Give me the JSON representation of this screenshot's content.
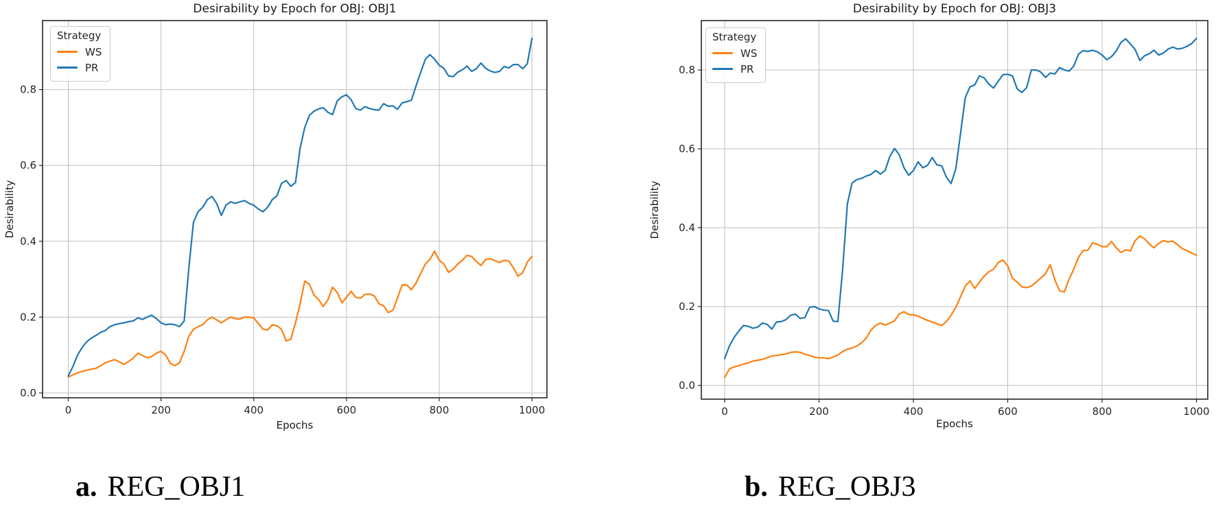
{
  "page": {
    "background": "#ffffff"
  },
  "style": {
    "ws_color": "#ff7f0e",
    "pr_color": "#1f77b4",
    "grid_color": "#bdbdbd",
    "spine_color": "#262626",
    "text_color": "#262626"
  },
  "figure": {
    "captions": [
      {
        "tag": "a.",
        "text": "REG_OBJ1"
      },
      {
        "tag": "b.",
        "text": "REG_OBJ3"
      }
    ]
  },
  "charts": [
    {
      "title": "Desirability by Epoch for OBJ: OBJ1",
      "xlabel": "Epochs",
      "ylabel": "Desirability",
      "legend": {
        "title": "Strategy",
        "items": [
          {
            "label": "WS",
            "color": "#ff7f0e"
          },
          {
            "label": "PR",
            "color": "#1f77b4"
          }
        ]
      },
      "x_ticks": {
        "values": [
          0,
          200,
          400,
          600,
          800,
          1000
        ],
        "labels": [
          "0",
          "200",
          "400",
          "600",
          "800",
          "1000"
        ]
      },
      "y_ticks": {
        "values": [
          0.0,
          0.2,
          0.4,
          0.6,
          0.8
        ],
        "labels": [
          "0.0",
          "0.2",
          "0.4",
          "0.6",
          "0.8"
        ]
      }
    },
    {
      "title": "Desirability by Epoch for OBJ: OBJ3",
      "xlabel": "Epochs",
      "ylabel": "Desirability",
      "legend": {
        "title": "Strategy",
        "items": [
          {
            "label": "WS",
            "color": "#ff7f0e"
          },
          {
            "label": "PR",
            "color": "#1f77b4"
          }
        ]
      },
      "x_ticks": {
        "values": [
          0,
          200,
          400,
          600,
          800,
          1000
        ],
        "labels": [
          "0",
          "200",
          "400",
          "600",
          "800",
          "1000"
        ]
      },
      "y_ticks": {
        "values": [
          0.0,
          0.2,
          0.4,
          0.6,
          0.8
        ],
        "labels": [
          "0.0",
          "0.2",
          "0.4",
          "0.6",
          "0.8"
        ]
      }
    }
  ],
  "chart_data": [
    {
      "type": "line",
      "title": "Desirability by Epoch for OBJ: OBJ1",
      "xlabel": "Epochs",
      "ylabel": "Desirability",
      "legend_title": "Strategy",
      "legend_position": "upper left",
      "grid": true,
      "xlim": [
        -55,
        1032
      ],
      "ylim": [
        -0.015,
        0.981
      ],
      "x": [
        0,
        10,
        20,
        30,
        40,
        50,
        60,
        70,
        80,
        90,
        100,
        110,
        120,
        130,
        140,
        150,
        160,
        170,
        180,
        190,
        200,
        210,
        220,
        230,
        240,
        250,
        260,
        270,
        280,
        290,
        300,
        310,
        320,
        330,
        340,
        350,
        360,
        370,
        380,
        390,
        400,
        410,
        420,
        430,
        440,
        450,
        460,
        470,
        480,
        490,
        500,
        510,
        520,
        530,
        540,
        550,
        560,
        570,
        580,
        590,
        600,
        610,
        620,
        630,
        640,
        650,
        660,
        670,
        680,
        690,
        700,
        710,
        720,
        730,
        740,
        750,
        760,
        770,
        780,
        790,
        800,
        810,
        820,
        830,
        840,
        850,
        860,
        870,
        880,
        890,
        900,
        910,
        920,
        930,
        940,
        950,
        960,
        970,
        980,
        990,
        1000
      ],
      "series": [
        {
          "name": "WS",
          "color": "#ff7f0e",
          "values": [
            0.042,
            0.048,
            0.053,
            0.057,
            0.06,
            0.063,
            0.065,
            0.072,
            0.08,
            0.084,
            0.088,
            0.082,
            0.075,
            0.083,
            0.092,
            0.105,
            0.099,
            0.093,
            0.096,
            0.105,
            0.11,
            0.1,
            0.078,
            0.072,
            0.08,
            0.11,
            0.15,
            0.168,
            0.175,
            0.18,
            0.193,
            0.2,
            0.193,
            0.185,
            0.193,
            0.2,
            0.196,
            0.195,
            0.2,
            0.2,
            0.198,
            0.183,
            0.168,
            0.166,
            0.18,
            0.177,
            0.168,
            0.137,
            0.142,
            0.185,
            0.235,
            0.295,
            0.287,
            0.258,
            0.246,
            0.228,
            0.246,
            0.279,
            0.265,
            0.238,
            0.252,
            0.268,
            0.252,
            0.25,
            0.26,
            0.261,
            0.256,
            0.235,
            0.23,
            0.212,
            0.218,
            0.25,
            0.285,
            0.285,
            0.272,
            0.29,
            0.315,
            0.34,
            0.352,
            0.374,
            0.35,
            0.34,
            0.318,
            0.326,
            0.34,
            0.35,
            0.363,
            0.36,
            0.347,
            0.336,
            0.352,
            0.354,
            0.349,
            0.344,
            0.35,
            0.348,
            0.33,
            0.308,
            0.317,
            0.345,
            0.36
          ]
        },
        {
          "name": "PR",
          "color": "#1f77b4",
          "values": [
            0.045,
            0.07,
            0.1,
            0.12,
            0.135,
            0.145,
            0.152,
            0.16,
            0.165,
            0.175,
            0.18,
            0.183,
            0.185,
            0.188,
            0.19,
            0.198,
            0.194,
            0.2,
            0.205,
            0.196,
            0.185,
            0.18,
            0.182,
            0.18,
            0.175,
            0.19,
            0.33,
            0.45,
            0.478,
            0.49,
            0.51,
            0.518,
            0.5,
            0.468,
            0.495,
            0.504,
            0.5,
            0.504,
            0.507,
            0.5,
            0.495,
            0.485,
            0.478,
            0.49,
            0.51,
            0.52,
            0.553,
            0.56,
            0.545,
            0.555,
            0.645,
            0.7,
            0.732,
            0.743,
            0.749,
            0.752,
            0.74,
            0.734,
            0.77,
            0.781,
            0.786,
            0.773,
            0.75,
            0.746,
            0.755,
            0.75,
            0.747,
            0.746,
            0.763,
            0.756,
            0.757,
            0.748,
            0.765,
            0.768,
            0.772,
            0.81,
            0.845,
            0.88,
            0.892,
            0.88,
            0.864,
            0.856,
            0.836,
            0.834,
            0.846,
            0.852,
            0.862,
            0.848,
            0.855,
            0.87,
            0.856,
            0.849,
            0.845,
            0.848,
            0.861,
            0.857,
            0.866,
            0.866,
            0.855,
            0.868,
            0.935
          ]
        }
      ]
    },
    {
      "type": "line",
      "title": "Desirability by Epoch for OBJ: OBJ3",
      "xlabel": "Epochs",
      "ylabel": "Desirability",
      "legend_title": "Strategy",
      "legend_position": "upper left",
      "grid": true,
      "xlim": [
        -49,
        1024
      ],
      "ylim": [
        -0.028,
        0.932
      ],
      "x": [
        0,
        10,
        20,
        30,
        40,
        50,
        60,
        70,
        80,
        90,
        100,
        110,
        120,
        130,
        140,
        150,
        160,
        170,
        180,
        190,
        200,
        210,
        220,
        230,
        240,
        250,
        260,
        270,
        280,
        290,
        300,
        310,
        320,
        330,
        340,
        350,
        360,
        370,
        380,
        390,
        400,
        410,
        420,
        430,
        440,
        450,
        460,
        470,
        480,
        490,
        500,
        510,
        520,
        530,
        540,
        550,
        560,
        570,
        580,
        590,
        600,
        610,
        620,
        630,
        640,
        650,
        660,
        670,
        680,
        690,
        700,
        710,
        720,
        730,
        740,
        750,
        760,
        770,
        780,
        790,
        800,
        810,
        820,
        830,
        840,
        850,
        860,
        870,
        880,
        890,
        900,
        910,
        920,
        930,
        940,
        950,
        960,
        970,
        980,
        990,
        1000
      ],
      "series": [
        {
          "name": "WS",
          "color": "#ff7f0e",
          "values": [
            0.02,
            0.042,
            0.047,
            0.05,
            0.054,
            0.057,
            0.062,
            0.064,
            0.066,
            0.07,
            0.075,
            0.076,
            0.078,
            0.08,
            0.084,
            0.085,
            0.084,
            0.079,
            0.076,
            0.072,
            0.07,
            0.07,
            0.068,
            0.072,
            0.077,
            0.086,
            0.092,
            0.095,
            0.1,
            0.108,
            0.12,
            0.14,
            0.152,
            0.158,
            0.153,
            0.158,
            0.164,
            0.181,
            0.187,
            0.18,
            0.179,
            0.176,
            0.17,
            0.165,
            0.161,
            0.156,
            0.152,
            0.162,
            0.178,
            0.198,
            0.225,
            0.252,
            0.265,
            0.246,
            0.262,
            0.277,
            0.288,
            0.295,
            0.312,
            0.318,
            0.303,
            0.272,
            0.262,
            0.25,
            0.248,
            0.252,
            0.262,
            0.272,
            0.283,
            0.306,
            0.267,
            0.24,
            0.237,
            0.27,
            0.295,
            0.325,
            0.342,
            0.343,
            0.362,
            0.358,
            0.352,
            0.352,
            0.365,
            0.349,
            0.337,
            0.344,
            0.341,
            0.367,
            0.379,
            0.372,
            0.359,
            0.349,
            0.36,
            0.367,
            0.364,
            0.366,
            0.357,
            0.347,
            0.342,
            0.336,
            0.33
          ]
        },
        {
          "name": "PR",
          "color": "#1f77b4",
          "values": [
            0.068,
            0.1,
            0.122,
            0.138,
            0.152,
            0.15,
            0.145,
            0.148,
            0.158,
            0.155,
            0.143,
            0.161,
            0.162,
            0.167,
            0.178,
            0.181,
            0.17,
            0.172,
            0.198,
            0.2,
            0.194,
            0.191,
            0.19,
            0.163,
            0.162,
            0.294,
            0.46,
            0.513,
            0.522,
            0.525,
            0.531,
            0.535,
            0.545,
            0.536,
            0.545,
            0.58,
            0.601,
            0.585,
            0.552,
            0.533,
            0.545,
            0.567,
            0.552,
            0.558,
            0.578,
            0.559,
            0.557,
            0.528,
            0.512,
            0.55,
            0.64,
            0.73,
            0.757,
            0.762,
            0.785,
            0.78,
            0.764,
            0.754,
            0.772,
            0.788,
            0.789,
            0.785,
            0.752,
            0.743,
            0.755,
            0.8,
            0.8,
            0.795,
            0.781,
            0.792,
            0.79,
            0.806,
            0.8,
            0.797,
            0.81,
            0.84,
            0.849,
            0.847,
            0.85,
            0.846,
            0.838,
            0.826,
            0.834,
            0.848,
            0.87,
            0.879,
            0.866,
            0.852,
            0.824,
            0.836,
            0.841,
            0.85,
            0.838,
            0.843,
            0.853,
            0.858,
            0.853,
            0.855,
            0.86,
            0.867,
            0.88
          ]
        }
      ]
    }
  ]
}
